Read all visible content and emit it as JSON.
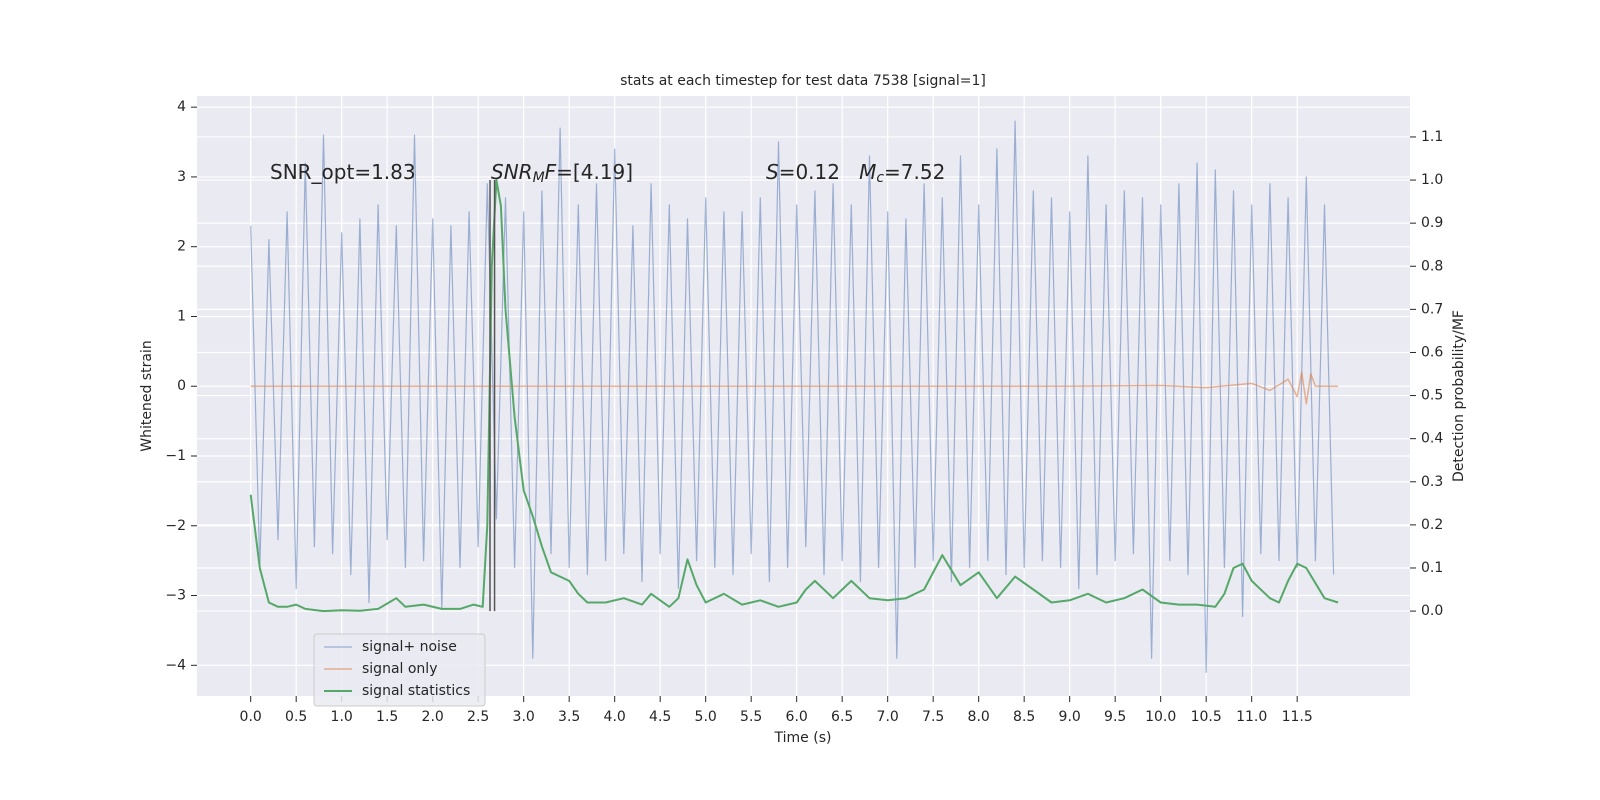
{
  "chart_data": {
    "type": "line",
    "title": "stats at each timestep for test data 7538 [signal=1]",
    "xlabel": "Time (s)",
    "ylabel": "Whitened strain",
    "y2label": "Detection probability/MF",
    "grid": true,
    "legend": "lower left",
    "xlim": [
      -0.59,
      12.74
    ],
    "ylim": [
      -4.44,
      4.16
    ],
    "y2lim": [
      -0.197,
      1.195
    ],
    "xticks": [
      {
        "value": 0,
        "label": "0.0"
      },
      0.5,
      {
        "value": 1,
        "label": "1.0"
      },
      1.5,
      {
        "value": 2,
        "label": "2.0"
      },
      2.5,
      {
        "value": 3,
        "label": "3.0"
      },
      3.5,
      {
        "value": 4,
        "label": "4.0"
      },
      4.5,
      {
        "value": 5,
        "label": "5.0"
      },
      5.5,
      {
        "value": 6,
        "label": "6.0"
      },
      6.5,
      {
        "value": 7,
        "label": "7.0"
      },
      7.5,
      {
        "value": 8,
        "label": "8.0"
      },
      8.5,
      {
        "value": 9,
        "label": "9.0"
      },
      9.5,
      {
        "value": 10,
        "label": "10.0"
      },
      10.5,
      {
        "value": 11,
        "label": "11.0"
      },
      11.5
    ],
    "yticks": [
      {
        "value": -4,
        "label": "−4"
      },
      {
        "value": -3,
        "label": "−3"
      },
      {
        "value": -2,
        "label": "−2"
      },
      {
        "value": -1,
        "label": "−1"
      },
      0,
      1,
      2,
      3,
      4
    ],
    "y2ticks": [
      {
        "value": 0,
        "label": "0.0"
      },
      0.1,
      0.2,
      0.3,
      0.4,
      0.5,
      0.6,
      0.7,
      0.8,
      0.9,
      {
        "value": 1,
        "label": "1.0"
      },
      1.1
    ],
    "vlines": {
      "color": "#555555",
      "x": [
        2.63,
        2.68
      ],
      "y2": [
        0,
        1
      ]
    },
    "annotations": [
      [
        [
          "SNR_opt=1.83",
          ""
        ]
      ],
      [
        [
          "SNR",
          "i"
        ],
        [
          "M",
          "sub"
        ],
        [
          "F",
          "i"
        ],
        [
          "=[4.19]",
          ""
        ]
      ],
      [
        [
          "S",
          "i"
        ],
        [
          "=0.12   ",
          ""
        ],
        [
          "M",
          "i"
        ],
        [
          "c",
          "sub"
        ],
        [
          "=7.52",
          ""
        ]
      ]
    ],
    "series": [
      {
        "name": "signal+ noise",
        "color": "#4c72b0",
        "axis": "y",
        "x": [
          0,
          0.1,
          0.2,
          0.3,
          0.4,
          0.5,
          0.6,
          0.7,
          0.8,
          0.9,
          1,
          1.1,
          1.2,
          1.3,
          1.4,
          1.5,
          1.6,
          1.7,
          1.8,
          1.9,
          2,
          2.1,
          2.2,
          2.3,
          2.4,
          2.5,
          2.6,
          2.7,
          2.8,
          2.9,
          3,
          3.1,
          3.2,
          3.3,
          3.4,
          3.5,
          3.6,
          3.7,
          3.8,
          3.9,
          4,
          4.1,
          4.2,
          4.3,
          4.4,
          4.5,
          4.6,
          4.7,
          4.8,
          4.9,
          5,
          5.1,
          5.2,
          5.3,
          5.4,
          5.5,
          5.6,
          5.7,
          5.8,
          5.9,
          6,
          6.1,
          6.2,
          6.3,
          6.4,
          6.5,
          6.6,
          6.7,
          6.8,
          6.9,
          7,
          7.1,
          7.2,
          7.3,
          7.4,
          7.5,
          7.6,
          7.7,
          7.8,
          7.9,
          8,
          8.1,
          8.2,
          8.3,
          8.4,
          8.5,
          8.6,
          8.7,
          8.8,
          8.9,
          9,
          9.1,
          9.2,
          9.3,
          9.4,
          9.5,
          9.6,
          9.7,
          9.8,
          9.9,
          10,
          10.1,
          10.2,
          10.3,
          10.4,
          10.5,
          10.6,
          10.7,
          10.8,
          10.9,
          11,
          11.1,
          11.2,
          11.3,
          11.4,
          11.5,
          11.6,
          11.7,
          11.8,
          11.9
        ],
        "values": [
          2.3,
          -2.6,
          2.1,
          -2.2,
          2.5,
          -2.9,
          3.2,
          -2.3,
          3.6,
          -2.4,
          2.2,
          -2.7,
          2.4,
          -3.1,
          2.6,
          -2.2,
          2.3,
          -2.6,
          3.6,
          -2.5,
          2.4,
          -3.2,
          2.3,
          -2.6,
          2.5,
          -2.3,
          2.9,
          -1.9,
          2.7,
          -2.6,
          2.5,
          -3.9,
          2.8,
          -2.4,
          3.7,
          -2.6,
          2.6,
          -2.7,
          2.9,
          -2.5,
          3.4,
          -2.4,
          2.3,
          -2.8,
          2.9,
          -2.4,
          2.6,
          -2.9,
          2.4,
          -2.5,
          2.7,
          -2.6,
          2.5,
          -2.7,
          2.5,
          -2.4,
          2.7,
          -2.8,
          3.5,
          -2.6,
          2.6,
          -2.3,
          2.8,
          -2.7,
          2.9,
          -2.5,
          2.6,
          -2.8,
          3.3,
          -2.6,
          2.5,
          -3.9,
          2.4,
          -2.6,
          2.9,
          -2.5,
          2.7,
          -2.8,
          3.3,
          -2.6,
          2.6,
          -2.5,
          3.4,
          -2.7,
          3.8,
          -2.6,
          2.8,
          -2.5,
          2.7,
          -2.6,
          2.5,
          -2.9,
          3.3,
          -2.7,
          2.6,
          -2.5,
          2.8,
          -2.4,
          2.7,
          -3.9,
          2.6,
          -2.5,
          2.9,
          -2.7,
          3.2,
          -4.1,
          3.1,
          -2.6,
          2.8,
          -3.3,
          2.6,
          -2.4,
          2.9,
          -2.5,
          2.7,
          -2.6,
          3.0,
          -2.5,
          2.6,
          -2.7
        ]
      },
      {
        "name": "signal only",
        "color": "#dd8452",
        "axis": "y",
        "x": [
          0,
          9,
          10,
          10.5,
          11,
          11.2,
          11.4,
          11.5,
          11.55,
          11.6,
          11.65,
          11.7,
          11.75,
          11.95
        ],
        "values": [
          0,
          0,
          0.01,
          -0.02,
          0.04,
          -0.06,
          0.1,
          -0.15,
          0.2,
          -0.25,
          0.18,
          0,
          0,
          0
        ]
      },
      {
        "name": "signal statistics",
        "color": "#55a868",
        "axis": "y2",
        "x": [
          0,
          0.1,
          0.15,
          0.2,
          0.3,
          0.4,
          0.5,
          0.6,
          0.8,
          1,
          1.2,
          1.4,
          1.6,
          1.7,
          1.9,
          2.1,
          2.3,
          2.45,
          2.55,
          2.6,
          2.65,
          2.7,
          2.75,
          2.8,
          2.9,
          3,
          3.1,
          3.2,
          3.3,
          3.4,
          3.5,
          3.6,
          3.7,
          3.9,
          4.1,
          4.3,
          4.4,
          4.6,
          4.7,
          4.8,
          4.9,
          5,
          5.2,
          5.4,
          5.6,
          5.8,
          6,
          6.1,
          6.2,
          6.4,
          6.6,
          6.8,
          7,
          7.2,
          7.4,
          7.6,
          7.8,
          8,
          8.2,
          8.4,
          8.6,
          8.8,
          9,
          9.2,
          9.4,
          9.6,
          9.8,
          10,
          10.2,
          10.4,
          10.6,
          10.7,
          10.8,
          10.9,
          11,
          11.2,
          11.3,
          11.4,
          11.5,
          11.6,
          11.8,
          11.95
        ],
        "values": [
          0.27,
          0.1,
          0.06,
          0.02,
          0.01,
          0.01,
          0.015,
          0.005,
          0,
          0.002,
          0.001,
          0.005,
          0.03,
          0.01,
          0.015,
          0.005,
          0.005,
          0.015,
          0.01,
          0.2,
          0.8,
          1.0,
          0.94,
          0.7,
          0.45,
          0.28,
          0.22,
          0.15,
          0.09,
          0.08,
          0.07,
          0.04,
          0.02,
          0.02,
          0.03,
          0.015,
          0.04,
          0.01,
          0.03,
          0.12,
          0.06,
          0.02,
          0.04,
          0.015,
          0.025,
          0.01,
          0.02,
          0.05,
          0.07,
          0.03,
          0.07,
          0.03,
          0.025,
          0.03,
          0.05,
          0.13,
          0.06,
          0.09,
          0.03,
          0.08,
          0.05,
          0.02,
          0.025,
          0.04,
          0.02,
          0.03,
          0.05,
          0.02,
          0.015,
          0.015,
          0.01,
          0.04,
          0.1,
          0.11,
          0.07,
          0.03,
          0.02,
          0.07,
          0.11,
          0.1,
          0.03,
          0.02
        ]
      }
    ]
  }
}
